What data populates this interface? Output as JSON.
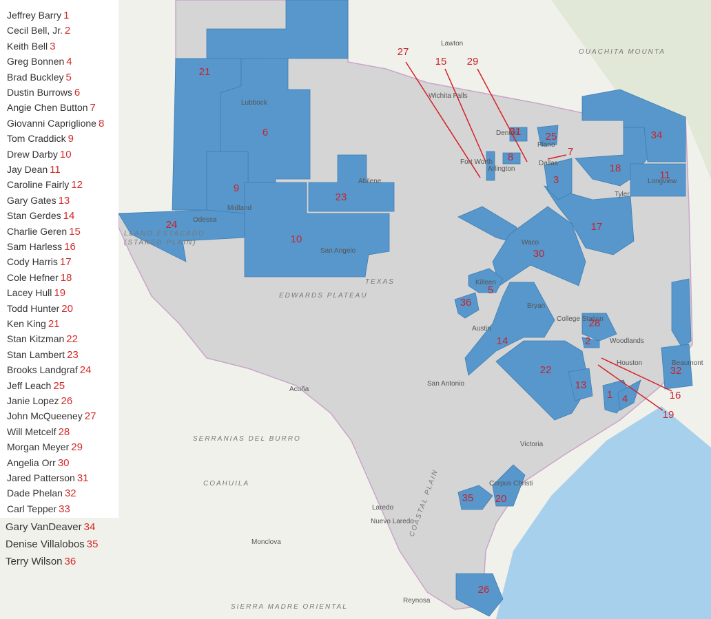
{
  "legend": {
    "items": [
      {
        "name": "Jeffrey Barry",
        "number": 1
      },
      {
        "name": "Cecil Bell, Jr.",
        "number": 2
      },
      {
        "name": "Keith Bell",
        "number": 3
      },
      {
        "name": "Greg Bonnen",
        "number": 4
      },
      {
        "name": "Brad Buckley",
        "number": 5
      },
      {
        "name": "Dustin Burrows",
        "number": 6
      },
      {
        "name": "Angie Chen Button",
        "number": 7
      },
      {
        "name": "Giovanni Capriglione",
        "number": 8
      },
      {
        "name": "Tom Craddick",
        "number": 9
      },
      {
        "name": "Drew Darby",
        "number": 10
      },
      {
        "name": "Jay Dean",
        "number": 11
      },
      {
        "name": "Caroline Fairly",
        "number": 12
      },
      {
        "name": "Gary Gates",
        "number": 13
      },
      {
        "name": "Stan Gerdes",
        "number": 14
      },
      {
        "name": "Charlie Geren",
        "number": 15
      },
      {
        "name": "Sam Harless",
        "number": 16
      },
      {
        "name": "Cody Harris",
        "number": 17
      },
      {
        "name": "Cole Hefner",
        "number": 18
      },
      {
        "name": "Lacey Hull",
        "number": 19
      },
      {
        "name": "Todd Hunter",
        "number": 20
      },
      {
        "name": "Ken King",
        "number": 21
      },
      {
        "name": "Stan Kitzman",
        "number": 22
      },
      {
        "name": "Stan Lambert",
        "number": 23
      },
      {
        "name": "Brooks Landgraf",
        "number": 24
      },
      {
        "name": "Jeff Leach",
        "number": 25
      },
      {
        "name": "Janie Lopez",
        "number": 26
      },
      {
        "name": "John McQueeney",
        "number": 27
      },
      {
        "name": "Will Metcelf",
        "number": 28
      },
      {
        "name": "Morgan Meyer",
        "number": 29
      },
      {
        "name": "Angelia Orr",
        "number": 30
      },
      {
        "name": "Jared Patterson",
        "number": 31
      },
      {
        "name": "Dade Phelan",
        "number": 32
      },
      {
        "name": "Carl Tepper",
        "number": 33
      },
      {
        "name": "Gary VanDeaver",
        "number": 34
      },
      {
        "name": "Denise Villalobos",
        "number": 35
      },
      {
        "name": "Terry Wilson",
        "number": 36
      }
    ]
  },
  "map": {
    "places": [
      "Lubbock",
      "Midland",
      "Odessa",
      "Abilene",
      "San Angelo",
      "Wichita Falls",
      "Fort Worth",
      "Arlington",
      "Dallas",
      "Denton",
      "Plano",
      "Tyler",
      "Longview",
      "Waco",
      "Killeen",
      "Austin",
      "Bryan",
      "College Station",
      "Houston",
      "Beaumont",
      "San Antonio",
      "Victoria",
      "Corpus Christi",
      "Laredo",
      "Nuevo Laredo",
      "Monclova",
      "Acuña",
      "Reynosa",
      "Lawton",
      "Woodlands",
      "TEXAS",
      "EDWARDS PLATEAU",
      "COASTAL PLAIN",
      "COAHUILA",
      "SERRANIAS DEL BURRO",
      "SIERRA MADRE ORIENTAL",
      "OUACHITA MOUNTA",
      "LLANO ESTACADO",
      "(STAKED PLAIN)"
    ]
  }
}
